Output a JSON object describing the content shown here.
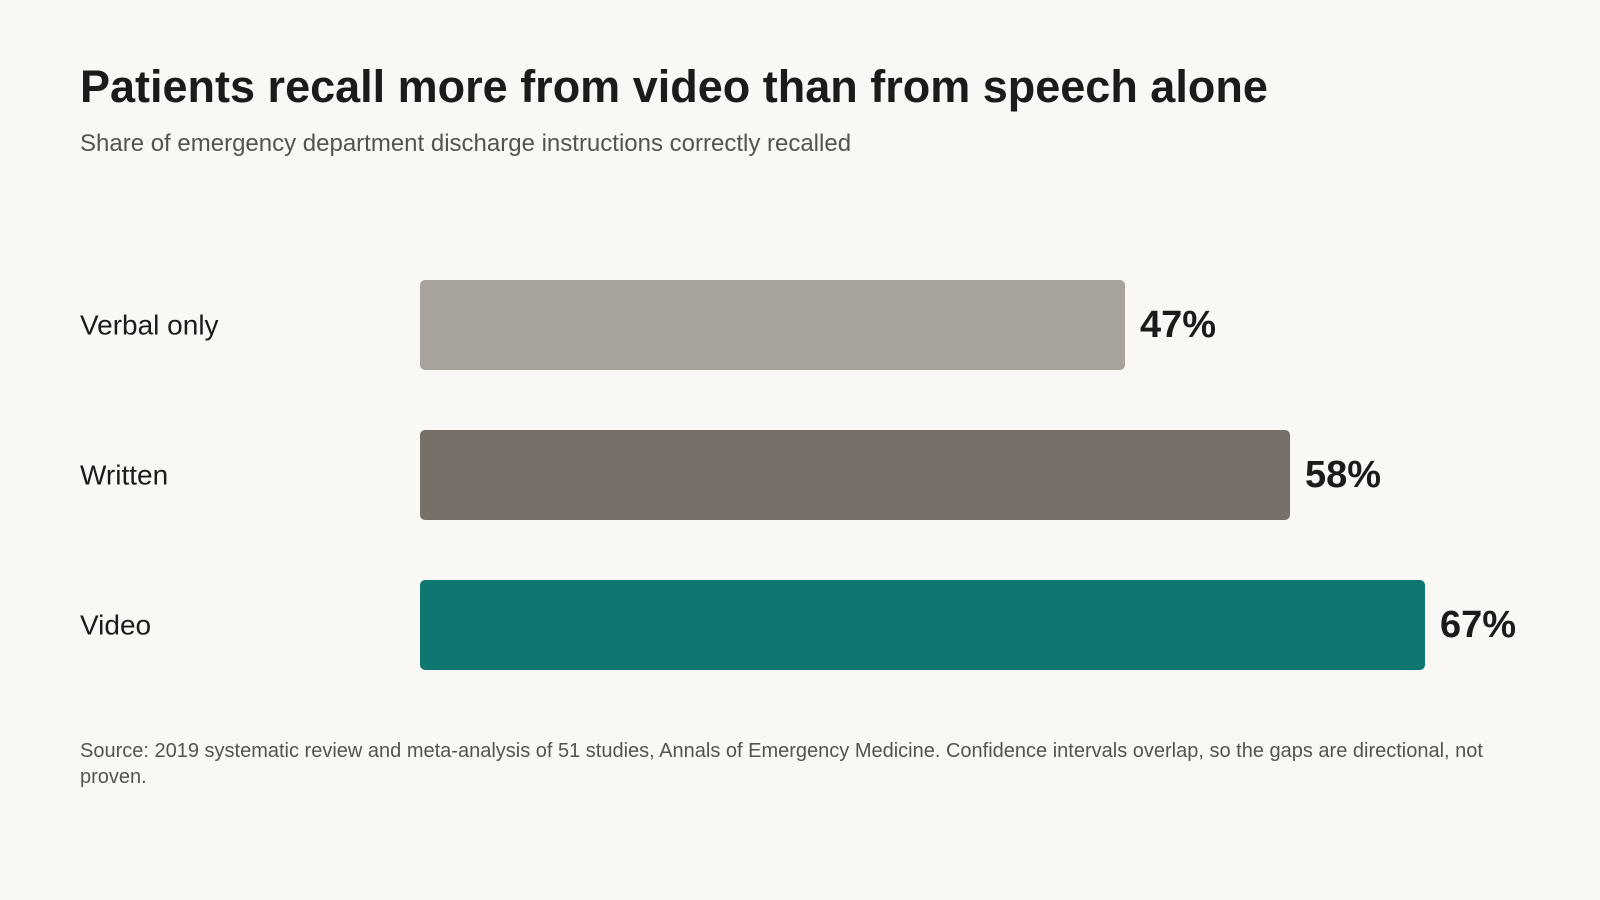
{
  "chart_data": {
    "type": "bar",
    "orientation": "horizontal",
    "title": "Patients recall more from video than from speech alone",
    "subtitle": "Share of emergency department discharge instructions correctly recalled",
    "categories": [
      "Verbal only",
      "Written",
      "Video"
    ],
    "values": [
      47,
      58,
      67
    ],
    "value_labels": [
      "47%",
      "58%",
      "67%"
    ],
    "colors": [
      "#a8a39c",
      "#767069",
      "#107770"
    ],
    "xlim": [
      0,
      100
    ],
    "grid": false,
    "source": "Source: 2019 systematic review and meta-analysis of 51 studies, Annals of Emergency Medicine. Confidence intervals overlap, so the gaps are directional, not proven."
  }
}
